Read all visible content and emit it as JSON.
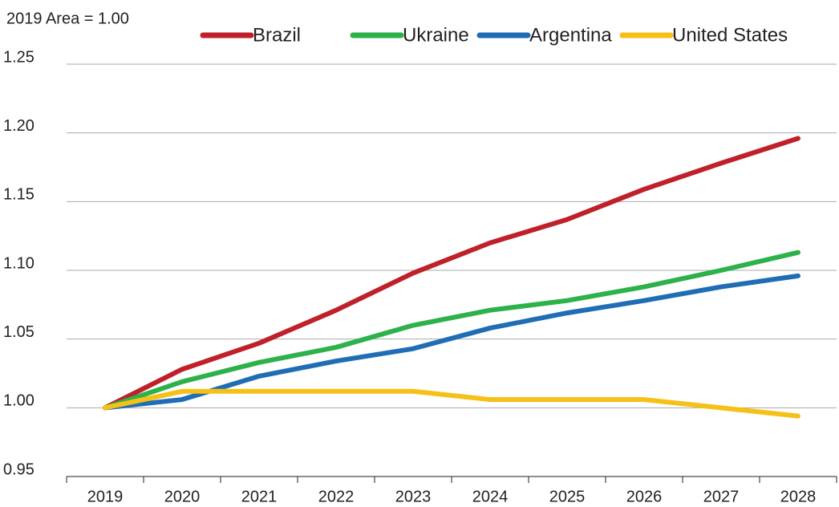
{
  "chart_data": {
    "type": "line",
    "subtitle": "2019 Area = 1.00",
    "categories": [
      "2019",
      "2020",
      "2021",
      "2022",
      "2023",
      "2024",
      "2025",
      "2026",
      "2027",
      "2028"
    ],
    "series": [
      {
        "name": "Brazil",
        "color": "#c0202a",
        "values": [
          1.0,
          1.028,
          1.047,
          1.071,
          1.098,
          1.12,
          1.137,
          1.159,
          1.178,
          1.196
        ]
      },
      {
        "name": "Ukraine",
        "color": "#2db14b",
        "values": [
          1.0,
          1.019,
          1.033,
          1.044,
          1.06,
          1.071,
          1.078,
          1.088,
          1.1,
          1.113
        ]
      },
      {
        "name": "Argentina",
        "color": "#1f6db5",
        "values": [
          1.0,
          1.006,
          1.023,
          1.034,
          1.043,
          1.058,
          1.069,
          1.078,
          1.088,
          1.096
        ]
      },
      {
        "name": "United States",
        "color": "#f5c117",
        "values": [
          1.0,
          1.012,
          1.012,
          1.012,
          1.012,
          1.006,
          1.006,
          1.006,
          1.0,
          0.994
        ]
      }
    ],
    "ylim": [
      0.95,
      1.25
    ],
    "yticks": [
      0.95,
      {
        "value": 1.0,
        "label": "1.00"
      },
      1.05,
      {
        "value": 1.1,
        "label": "1.10"
      },
      1.15,
      {
        "value": 1.2,
        "label": "1.20"
      },
      1.25
    ],
    "grid": true,
    "legend": "top"
  }
}
